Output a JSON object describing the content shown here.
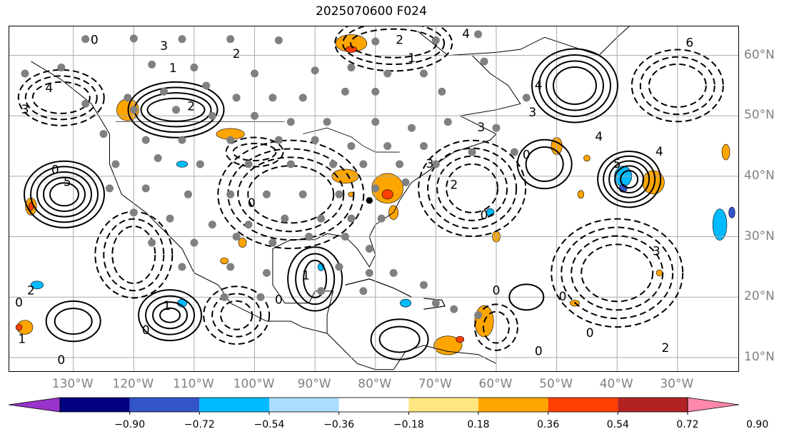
{
  "title": "2025070600 F024",
  "lon_labels": [
    "130°W",
    "120°W",
    "110°W",
    "100°W",
    "90°W",
    "80°W",
    "70°W",
    "60°W",
    "50°W",
    "40°W",
    "30°W"
  ],
  "lat_labels": [
    "60°N",
    "50°N",
    "40°N",
    "30°N",
    "20°N",
    "10°N"
  ],
  "colorbar": {
    "ticks": [
      "−0.90",
      "−0.72",
      "−0.54",
      "−0.36",
      "−0.18",
      "0.18",
      "0.36",
      "0.54",
      "0.72",
      "0.90"
    ],
    "colors": [
      "#9933cc",
      "#000080",
      "#3355cc",
      "#00bbff",
      "#aaddff",
      "#ffffff",
      "#ffe680",
      "#ffa500",
      "#ff4000",
      "#b22222",
      "#ff88aa"
    ]
  },
  "contour_labels": [
    {
      "text": "0",
      "lon": -126.5,
      "lat": 62.5
    },
    {
      "text": "3",
      "lon": -115.0,
      "lat": 61.5
    },
    {
      "text": "2",
      "lon": -103.0,
      "lat": 60.2
    },
    {
      "text": "1",
      "lon": -113.5,
      "lat": 57.8
    },
    {
      "text": "2",
      "lon": -110.5,
      "lat": 51.5
    },
    {
      "text": "4",
      "lon": -134.0,
      "lat": 54.5
    },
    {
      "text": "3",
      "lon": -138.0,
      "lat": 51.0
    },
    {
      "text": "5",
      "lon": -131.0,
      "lat": 39.0
    },
    {
      "text": "0",
      "lon": -133.0,
      "lat": 41.0
    },
    {
      "text": "2",
      "lon": -137.0,
      "lat": 21.0
    },
    {
      "text": "0",
      "lon": -139.0,
      "lat": 19.0
    },
    {
      "text": "1",
      "lon": -138.5,
      "lat": 13.0
    },
    {
      "text": "0",
      "lon": -132.0,
      "lat": 9.5
    },
    {
      "text": "0",
      "lon": -118.0,
      "lat": 14.5
    },
    {
      "text": "1",
      "lon": -114.5,
      "lat": 18.5
    },
    {
      "text": "0",
      "lon": -100.5,
      "lat": 35.5
    },
    {
      "text": "1",
      "lon": -91.5,
      "lat": 23.5
    },
    {
      "text": "0",
      "lon": -96.0,
      "lat": 19.5
    },
    {
      "text": "1",
      "lon": -74.0,
      "lat": 59.5
    },
    {
      "text": "2",
      "lon": -76.0,
      "lat": 62.5
    },
    {
      "text": "3",
      "lon": -71.0,
      "lat": 42.0
    },
    {
      "text": "2",
      "lon": -67.0,
      "lat": 38.5
    },
    {
      "text": "0",
      "lon": -62.0,
      "lat": 33.5
    },
    {
      "text": "0",
      "lon": -60.0,
      "lat": 21.0
    },
    {
      "text": "4",
      "lon": -65.0,
      "lat": 63.5
    },
    {
      "text": "3",
      "lon": -62.5,
      "lat": 48.0
    },
    {
      "text": "4",
      "lon": -53.0,
      "lat": 55.0
    },
    {
      "text": "3",
      "lon": -54.0,
      "lat": 50.5
    },
    {
      "text": "0",
      "lon": -55.0,
      "lat": 43.5
    },
    {
      "text": "0",
      "lon": -53.0,
      "lat": 11.0
    },
    {
      "text": "0",
      "lon": -44.5,
      "lat": 14.0
    },
    {
      "text": "4",
      "lon": -43.0,
      "lat": 46.5
    },
    {
      "text": "5",
      "lon": -40.0,
      "lat": 42.0
    },
    {
      "text": "4",
      "lon": -33.0,
      "lat": 44.0
    },
    {
      "text": "6",
      "lon": -28.0,
      "lat": 62.0
    },
    {
      "text": "3",
      "lon": -33.5,
      "lat": 27.5
    },
    {
      "text": "2",
      "lon": -32.0,
      "lat": 11.5
    },
    {
      "text": "0",
      "lon": -49.0,
      "lat": 20.0
    }
  ]
}
